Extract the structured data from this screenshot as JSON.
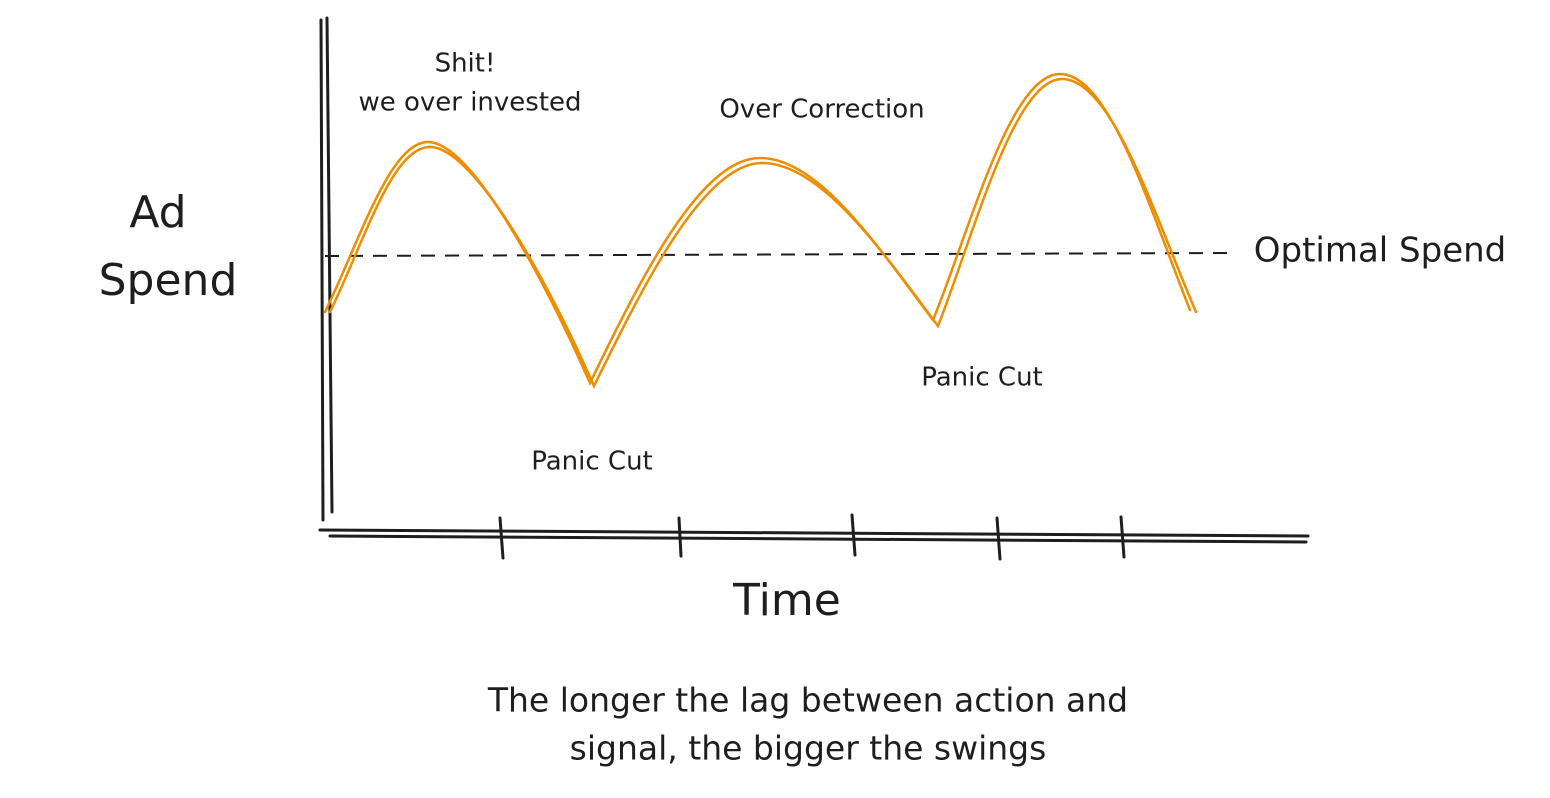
{
  "y_label": [
    "Ad",
    "Spend"
  ],
  "x_label": "Time",
  "reference_label": "Optimal Spend",
  "annotations": [
    {
      "lines": [
        "Shit!",
        "we over invested"
      ]
    },
    {
      "lines": [
        "Over Correction"
      ]
    },
    {
      "lines": [
        "Panic Cut"
      ]
    },
    {
      "lines": [
        "Panic Cut"
      ]
    }
  ],
  "caption": [
    "The longer the lag between action and",
    "signal, the bigger the swings"
  ]
}
